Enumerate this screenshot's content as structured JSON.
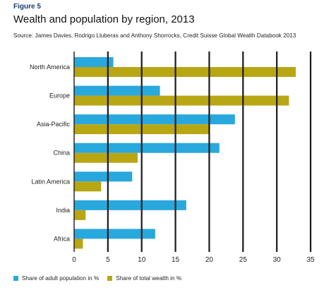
{
  "figure_label": "Figure 5",
  "chart_data": {
    "type": "bar",
    "orientation": "horizontal",
    "title": "Wealth and population by region, 2013",
    "subtitle": "Source: James Davies, Rodrigo Lluberas and Anthony Shorrocks, Credit Suisse Global Wealth Databook 2013",
    "categories": [
      "North America",
      "Europe",
      "Asia-Pacific",
      "China",
      "Latin America",
      "India",
      "Africa"
    ],
    "series": [
      {
        "name": "Share of adult population in %",
        "color": "#29a8dd",
        "values": [
          5.8,
          12.7,
          23.8,
          21.5,
          8.6,
          16.6,
          12.0
        ]
      },
      {
        "name": "Share of total wealth in %",
        "color": "#b8a613",
        "values": [
          32.8,
          31.8,
          20.1,
          9.4,
          4.0,
          1.7,
          1.3
        ]
      }
    ],
    "xlim": [
      0,
      35
    ],
    "xticks": [
      "0",
      "5",
      "10",
      "15",
      "20",
      "25",
      "30",
      "35"
    ],
    "grid": "vertical",
    "legend_position": "bottom"
  }
}
